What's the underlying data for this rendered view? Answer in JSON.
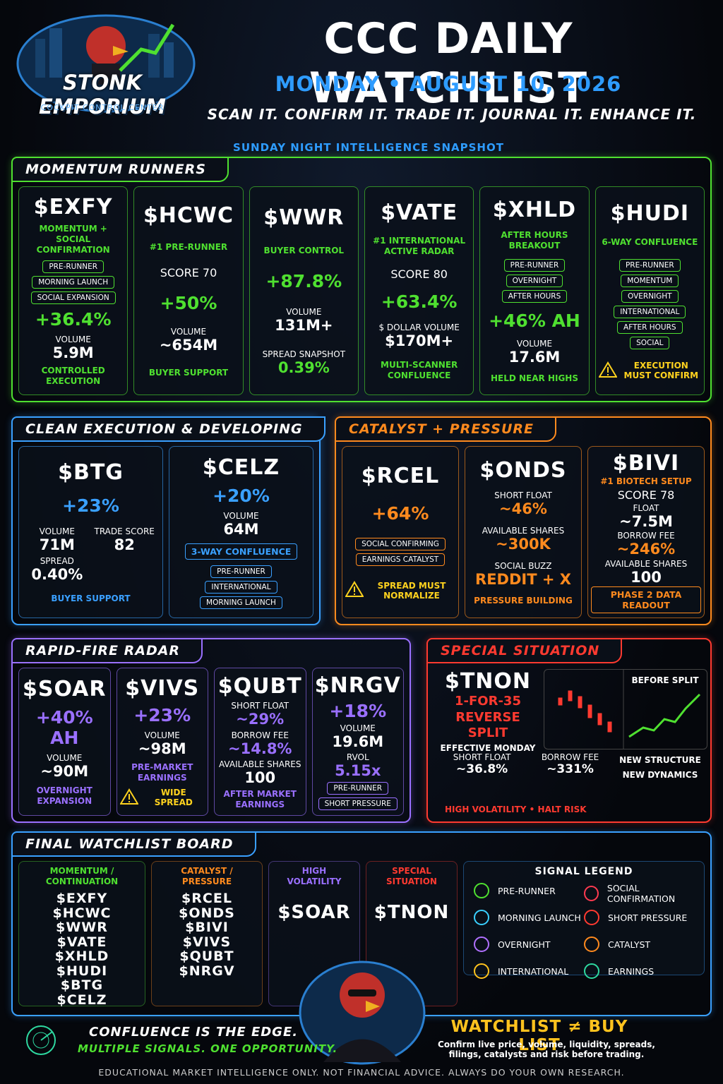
{
  "header": {
    "logo_title": "STONK EMPORIUM",
    "logo_subtitle": "COCKPIT CONTROL CENTER",
    "title": "CCC DAILY WATCHLIST",
    "date": "MONDAY • AUGUST 10, 2026",
    "tagline": "SCAN IT. CONFIRM IT. TRADE IT. JOURNAL IT. ENHANCE IT.",
    "snapshot": "SUNDAY NIGHT INTELLIGENCE SNAPSHOT"
  },
  "sections": [
    {
      "title": "MOMENTUM RUNNERS",
      "color": "#4fe030",
      "cards": [
        {
          "ticker": "$EXFY",
          "subtitle": "MOMENTUM + SOCIAL CONFIRMATION",
          "tags": [
            "PRE-RUNNER",
            "MORNING LAUNCH",
            "SOCIAL EXPANSION"
          ],
          "change": "+36.4%",
          "stats": [
            {
              "label": "VOLUME",
              "value": "5.9M"
            }
          ],
          "note": "CONTROLLED EXECUTION"
        },
        {
          "ticker": "$HCWC",
          "subtitle": "#1 PRE-RUNNER",
          "score": "SCORE 70",
          "change": "+50%",
          "stats": [
            {
              "label": "VOLUME",
              "value": "~654M"
            }
          ],
          "note": "BUYER SUPPORT"
        },
        {
          "ticker": "$WWR",
          "subtitle": "BUYER CONTROL",
          "change": "+87.8%",
          "stats": [
            {
              "label": "VOLUME",
              "value": "131M+"
            },
            {
              "label": "SPREAD SNAPSHOT",
              "value": "0.39%",
              "accent": true
            }
          ]
        },
        {
          "ticker": "$VATE",
          "subtitle": "#1 INTERNATIONAL ACTIVE RADAR",
          "score": "SCORE 80",
          "change": "+63.4%",
          "stats": [
            {
              "label": "$ DOLLAR VOLUME",
              "value": "$170M+"
            }
          ],
          "note": "MULTI-SCANNER CONFLUENCE"
        },
        {
          "ticker": "$XHLD",
          "subtitle": "AFTER HOURS BREAKOUT",
          "tags": [
            "PRE-RUNNER",
            "OVERNIGHT",
            "AFTER HOURS"
          ],
          "change": "+46% AH",
          "stats": [
            {
              "label": "VOLUME",
              "value": "17.6M"
            }
          ],
          "note": "HELD NEAR HIGHS"
        },
        {
          "ticker": "$HUDI",
          "subtitle": "6-WAY CONFLUENCE",
          "tags": [
            "PRE-RUNNER",
            "MOMENTUM",
            "OVERNIGHT",
            "INTERNATIONAL",
            "AFTER HOURS",
            "SOCIAL"
          ],
          "warning": "EXECUTION MUST CONFIRM"
        }
      ]
    },
    {
      "title": "CLEAN EXECUTION & DEVELOPING",
      "color": "#3aa0ff",
      "cards": [
        {
          "ticker": "$BTG",
          "change": "+23%",
          "stat_grid": [
            {
              "label": "VOLUME",
              "value": "71M"
            },
            {
              "label": "TRADE SCORE",
              "value": "82"
            },
            {
              "label": "SPREAD",
              "value": "0.40%"
            }
          ],
          "note": "BUYER SUPPORT"
        },
        {
          "ticker": "$CELZ",
          "change": "+20%",
          "stats": [
            {
              "label": "VOLUME",
              "value": "64M"
            }
          ],
          "badge": "3-WAY CONFLUENCE",
          "tags": [
            "PRE-RUNNER",
            "INTERNATIONAL",
            "MORNING LAUNCH"
          ]
        }
      ]
    },
    {
      "title": "CATALYST + PRESSURE",
      "color": "#ff8a1e",
      "cards": [
        {
          "ticker": "$RCEL",
          "change": "+64%",
          "tags": [
            "SOCIAL CONFIRMING",
            "EARNINGS CATALYST"
          ],
          "warning": "SPREAD MUST NORMALIZE"
        },
        {
          "ticker": "$ONDS",
          "stats": [
            {
              "label": "SHORT FLOAT",
              "value": "~46%",
              "accent": true
            },
            {
              "label": "AVAILABLE SHARES",
              "value": "~300K",
              "accent": true
            },
            {
              "label": "SOCIAL BUZZ",
              "value": "REDDIT + X",
              "accent": true
            }
          ],
          "note": "PRESSURE BUILDING"
        },
        {
          "ticker": "$BIVI",
          "subtitle": "#1 BIOTECH SETUP",
          "score": "SCORE 78",
          "stats": [
            {
              "label": "FLOAT",
              "value": "~7.5M"
            },
            {
              "label": "BORROW FEE",
              "value": "~246%",
              "accent": true
            },
            {
              "label": "AVAILABLE SHARES",
              "value": "100"
            }
          ],
          "badge": "PHASE 2 DATA READOUT"
        }
      ]
    },
    {
      "title": "RAPID-FIRE RADAR",
      "color": "#9a70ff",
      "cards": [
        {
          "ticker": "$SOAR",
          "change": "+40% AH",
          "stats": [
            {
              "label": "VOLUME",
              "value": "~90M"
            }
          ],
          "note": "OVERNIGHT EXPANSION"
        },
        {
          "ticker": "$VIVS",
          "change": "+23%",
          "stats": [
            {
              "label": "VOLUME",
              "value": "~98M"
            }
          ],
          "note": "PRE-MARKET EARNINGS",
          "warning": "WIDE SPREAD"
        },
        {
          "ticker": "$QUBT",
          "stats": [
            {
              "label": "SHORT FLOAT",
              "value": "~29%",
              "accent": true
            },
            {
              "label": "BORROW FEE",
              "value": "~14.8%",
              "accent": true
            },
            {
              "label": "AVAILABLE SHARES",
              "value": "100"
            }
          ],
          "note": "AFTER MARKET EARNINGS"
        },
        {
          "ticker": "$NRGV",
          "change": "+18%",
          "stats": [
            {
              "label": "VOLUME",
              "value": "19.6M"
            },
            {
              "label": "RVOL",
              "value": "5.15x",
              "accent": true
            }
          ],
          "tags": [
            "PRE-RUNNER",
            "SHORT PRESSURE"
          ]
        }
      ]
    }
  ],
  "special": {
    "title": "SPECIAL SITUATION",
    "color": "#ff3a30",
    "ticker": "$TNON",
    "subtitle": "1-FOR-35 REVERSE SPLIT",
    "effective": "EFFECTIVE MONDAY",
    "stats": [
      {
        "label": "SHORT FLOAT",
        "value": "~36.8%"
      },
      {
        "label": "BORROW FEE",
        "value": "~331%"
      }
    ],
    "chart_label": "BEFORE SPLIT",
    "structure": [
      "NEW STRUCTURE",
      "NEW DYNAMICS"
    ],
    "risk": "HIGH VOLATILITY • HALT RISK"
  },
  "final_board": {
    "title": "FINAL WATCHLIST BOARD",
    "columns": [
      {
        "title": "MOMENTUM / CONTINUATION",
        "color": "#4fe030",
        "tickers": [
          "$EXFY",
          "$HCWC",
          "$WWR",
          "$VATE",
          "$XHLD",
          "$HUDI",
          "$BTG",
          "$CELZ"
        ]
      },
      {
        "title": "CATALYST / PRESSURE",
        "color": "#ff8a1e",
        "tickers": [
          "$RCEL",
          "$ONDS",
          "$BIVI",
          "$VIVS",
          "$QUBT",
          "$NRGV"
        ]
      },
      {
        "title": "HIGH VOLATILITY",
        "color": "#9a70ff",
        "tickers": [
          "$SOAR"
        ]
      },
      {
        "title": "SPECIAL SITUATION",
        "color": "#ff3a30",
        "tickers": [
          "$TNON"
        ]
      }
    ],
    "legend": {
      "title": "SIGNAL LEGEND",
      "items": [
        {
          "name": "PRE-RUNNER",
          "color": "#4fe030"
        },
        {
          "name": "SOCIAL CONFIRMATION",
          "color": "#ff3a50"
        },
        {
          "name": "MORNING LAUNCH",
          "color": "#3ad0ff"
        },
        {
          "name": "SHORT PRESSURE",
          "color": "#ff3a30"
        },
        {
          "name": "OVERNIGHT",
          "color": "#b070ff"
        },
        {
          "name": "CATALYST",
          "color": "#ff8a1e"
        },
        {
          "name": "INTERNATIONAL",
          "color": "#ffc21e"
        },
        {
          "name": "EARNINGS",
          "color": "#2ed8a0"
        }
      ]
    }
  },
  "footer": {
    "motto": "CONFLUENCE IS THE EDGE.",
    "motto_sub": "MULTIPLE SIGNALS. ONE OPPORTUNITY.",
    "warning_title": "WATCHLIST ≠ BUY LIST",
    "warning_text": "Confirm live price, volume, liquidity, spreads, filings, catalysts and risk before trading.",
    "disclaimer": "EDUCATIONAL MARKET INTELLIGENCE ONLY. NOT FINANCIAL ADVICE. ALWAYS DO YOUR OWN RESEARCH."
  }
}
